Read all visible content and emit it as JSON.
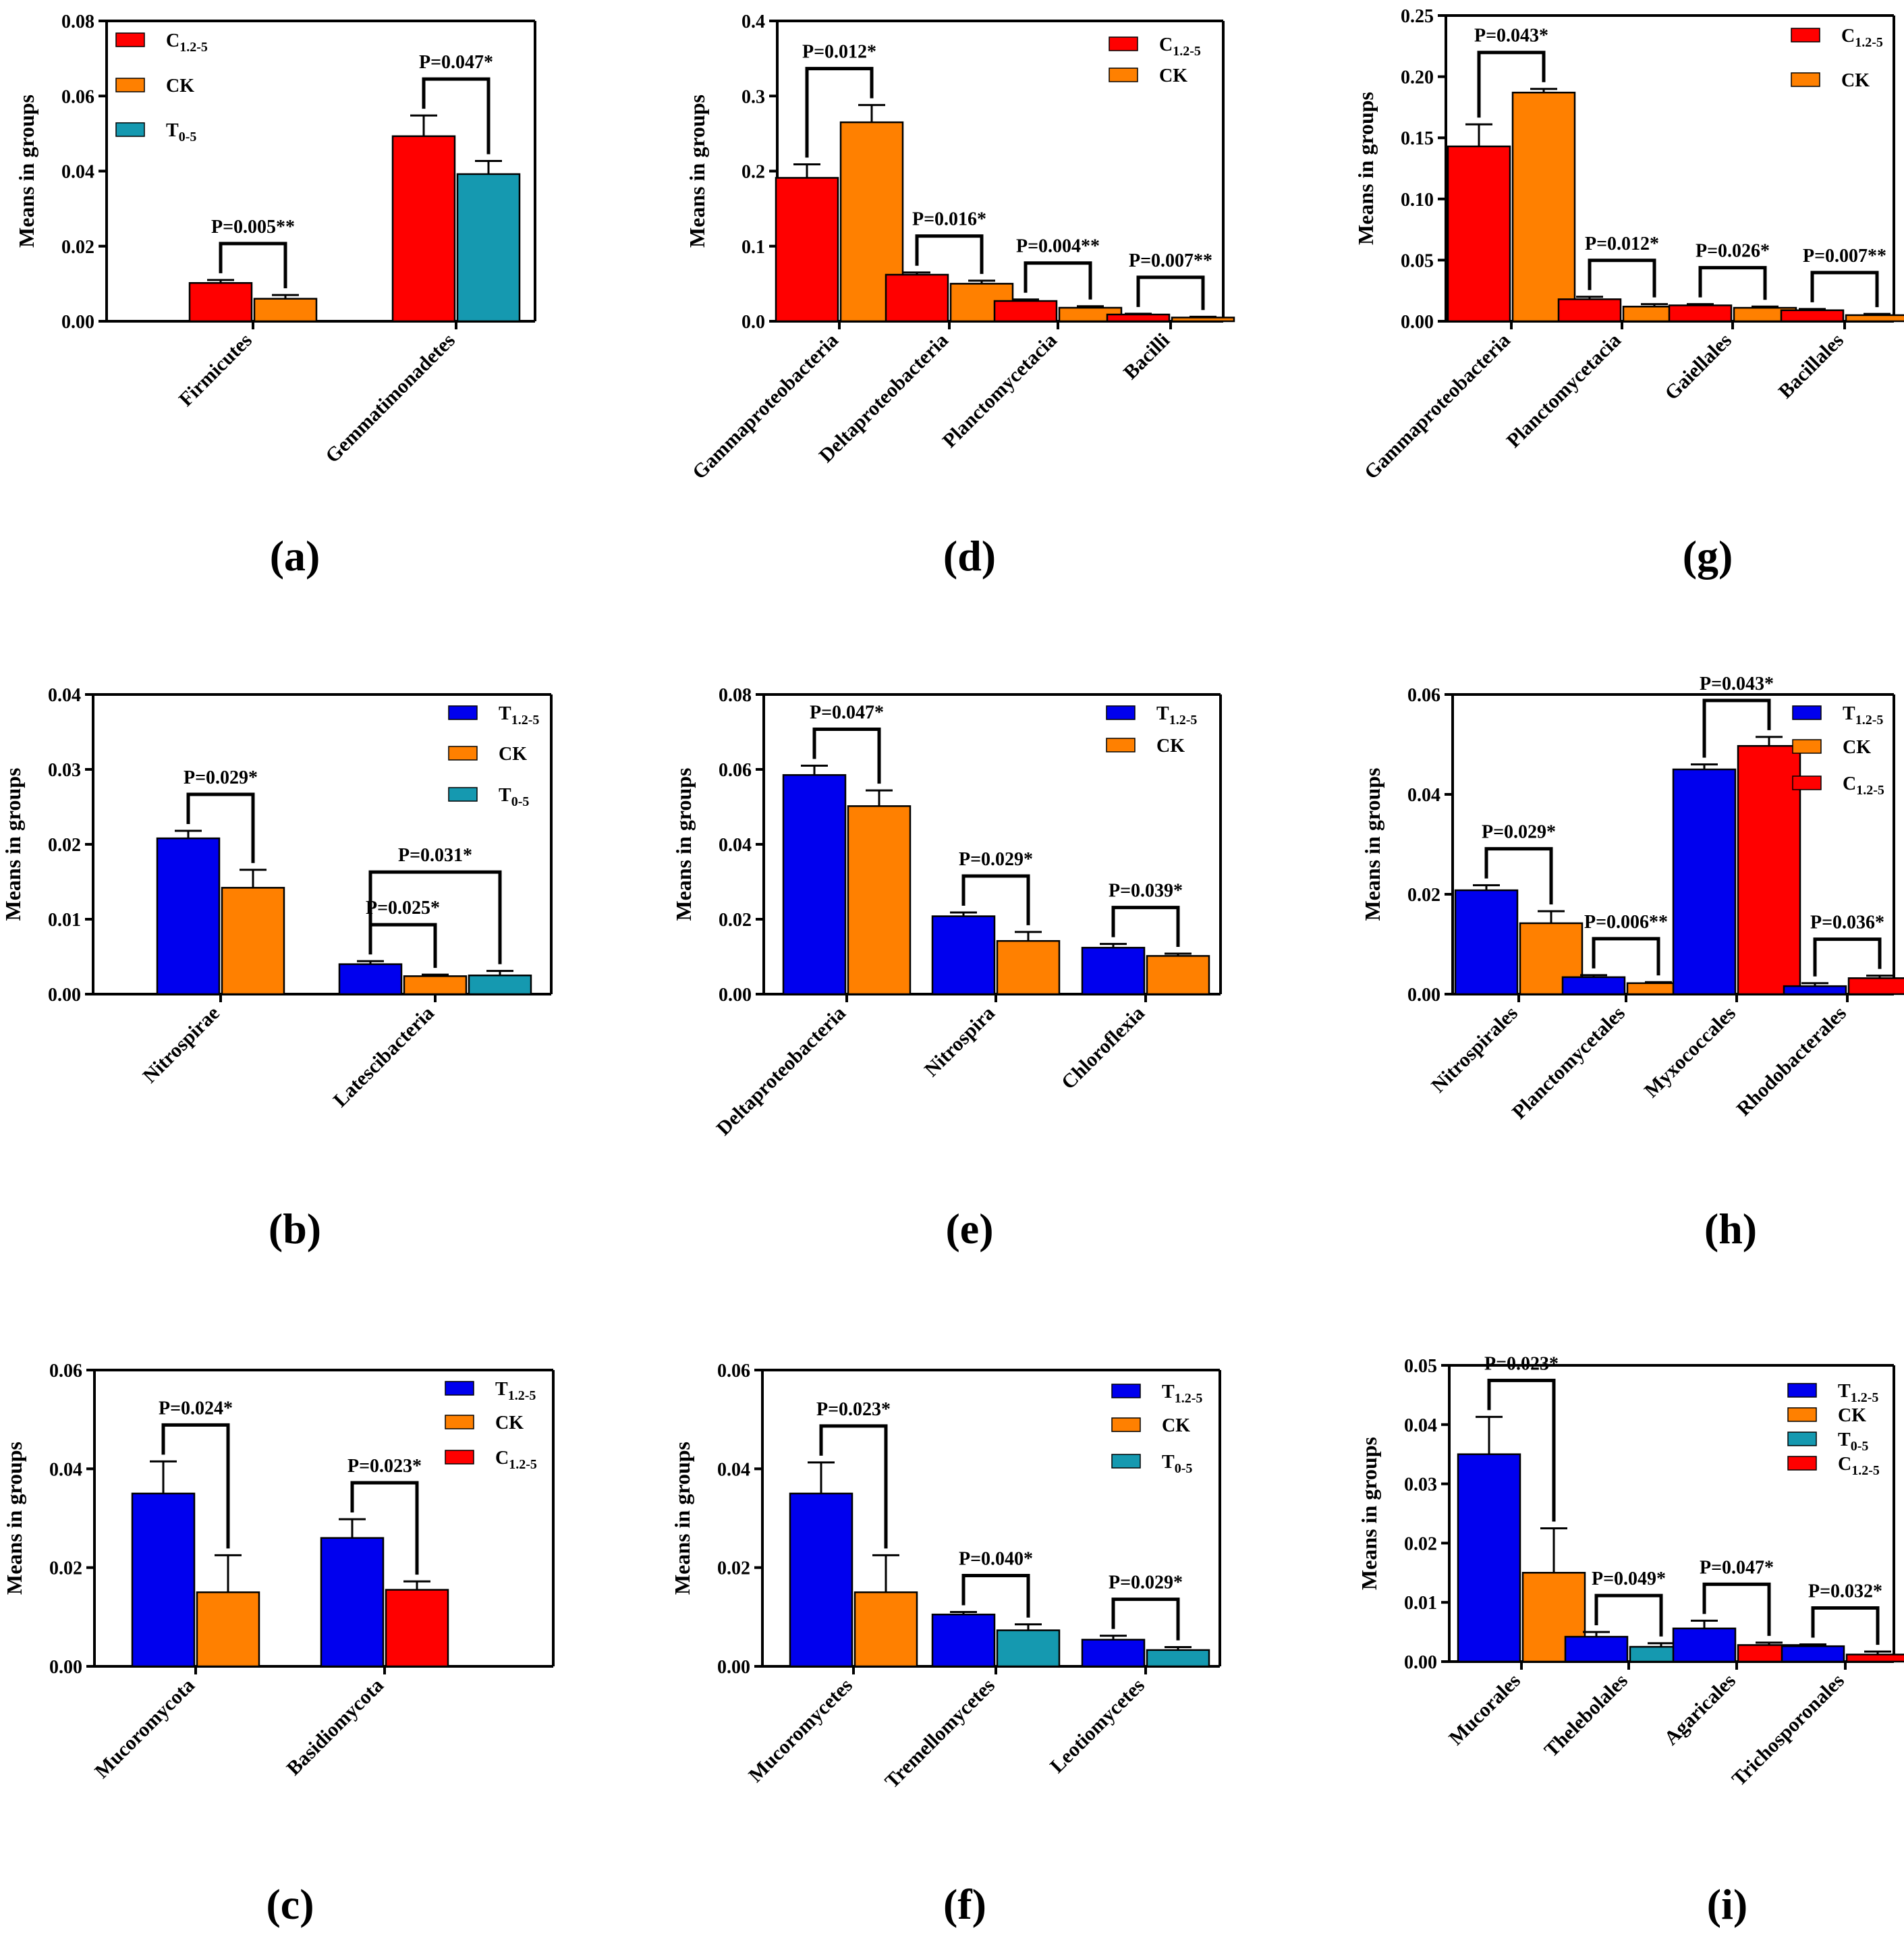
{
  "colors": {
    "C": "#ff0000",
    "CK": "#ff8000",
    "T0": "#1599b0",
    "T12": "#0000ee"
  },
  "chart_data": [
    {
      "type": "bar",
      "panel": "(a)",
      "ylabel": "Means in groups",
      "ylim": [
        0,
        0.08
      ],
      "yticks": [
        "0.00",
        "0.02",
        "0.04",
        "0.06",
        "0.08"
      ],
      "legend": [
        {
          "key": "C",
          "main": "C",
          "sub": "1.2-5"
        },
        {
          "key": "CK",
          "main": "CK",
          "sub": ""
        },
        {
          "key": "T0",
          "main": "T",
          "sub": "0-5"
        }
      ],
      "groups": [
        {
          "label": "Firmicutes",
          "pvalue": "P=0.005**",
          "bars": [
            {
              "key": "C",
              "value": 0.0102,
              "err": 0.0008
            },
            {
              "key": "CK",
              "value": 0.006,
              "err": 0.001
            }
          ]
        },
        {
          "label": "Gemmatimonadetes",
          "pvalue": "P=0.047*",
          "bars": [
            {
              "key": "C",
              "value": 0.0493,
              "err": 0.0055
            },
            {
              "key": "T0",
              "value": 0.0392,
              "err": 0.0035
            }
          ]
        }
      ]
    },
    {
      "type": "bar",
      "panel": "(d)",
      "ylabel": "Means in groups",
      "ylim": [
        0,
        0.4
      ],
      "yticks": [
        "0.0",
        "0.1",
        "0.2",
        "0.3",
        "0.4"
      ],
      "legend": [
        {
          "key": "C",
          "main": "C",
          "sub": "1.2-5"
        },
        {
          "key": "CK",
          "main": "CK",
          "sub": ""
        }
      ],
      "groups": [
        {
          "label": "Gammaproteobacteria",
          "pvalue": "P=0.012*",
          "bars": [
            {
              "key": "C",
              "value": 0.191,
              "err": 0.018
            },
            {
              "key": "CK",
              "value": 0.265,
              "err": 0.023
            }
          ]
        },
        {
          "label": "Deltaproteobacteria",
          "pvalue": "P=0.016*",
          "bars": [
            {
              "key": "C",
              "value": 0.062,
              "err": 0.003
            },
            {
              "key": "CK",
              "value": 0.05,
              "err": 0.004
            }
          ]
        },
        {
          "label": "Planctomycetacia",
          "pvalue": "P=0.004**",
          "bars": [
            {
              "key": "C",
              "value": 0.027,
              "err": 0.002
            },
            {
              "key": "CK",
              "value": 0.018,
              "err": 0.002
            }
          ]
        },
        {
          "label": "Bacilli",
          "pvalue": "P=0.007**",
          "bars": [
            {
              "key": "C",
              "value": 0.009,
              "err": 0.001
            },
            {
              "key": "CK",
              "value": 0.005,
              "err": 0.001
            }
          ]
        }
      ]
    },
    {
      "type": "bar",
      "panel": "(g)",
      "ylabel": "Means in groups",
      "ylim": [
        0,
        0.25
      ],
      "yticks": [
        "0.00",
        "0.05",
        "0.10",
        "0.15",
        "0.20",
        "0.25"
      ],
      "legend": [
        {
          "key": "C",
          "main": "C",
          "sub": "1.2-5"
        },
        {
          "key": "CK",
          "main": "CK",
          "sub": ""
        }
      ],
      "groups": [
        {
          "label": "Gammaproteobacteria",
          "pvalue": "P=0.043*",
          "bars": [
            {
              "key": "C",
              "value": 0.143,
              "err": 0.018
            },
            {
              "key": "CK",
              "value": 0.187,
              "err": 0.003
            }
          ]
        },
        {
          "label": "Planctomycetacia",
          "pvalue": "P=0.012*",
          "bars": [
            {
              "key": "C",
              "value": 0.018,
              "err": 0.002
            },
            {
              "key": "CK",
              "value": 0.012,
              "err": 0.002
            }
          ]
        },
        {
          "label": "Gaiellales",
          "pvalue": "P=0.026*",
          "bars": [
            {
              "key": "C",
              "value": 0.013,
              "err": 0.001
            },
            {
              "key": "CK",
              "value": 0.011,
              "err": 0.001
            }
          ]
        },
        {
          "label": "Bacillales",
          "pvalue": "P=0.007**",
          "bars": [
            {
              "key": "C",
              "value": 0.009,
              "err": 0.001
            },
            {
              "key": "CK",
              "value": 0.005,
              "err": 0.001
            }
          ]
        }
      ]
    },
    {
      "type": "bar",
      "panel": "(b)",
      "ylabel": "Means in groups",
      "ylim": [
        0,
        0.04
      ],
      "yticks": [
        "0.00",
        "0.01",
        "0.02",
        "0.03",
        "0.04"
      ],
      "legend": [
        {
          "key": "T12",
          "main": "T",
          "sub": "1.2-5"
        },
        {
          "key": "CK",
          "main": "CK",
          "sub": ""
        },
        {
          "key": "T0",
          "main": "T",
          "sub": "0-5"
        }
      ],
      "groups": [
        {
          "label": "Nitrospirae",
          "pvalue": "P=0.029*",
          "bars": [
            {
              "key": "T12",
              "value": 0.0208,
              "err": 0.001
            },
            {
              "key": "CK",
              "value": 0.0142,
              "err": 0.0024
            }
          ]
        },
        {
          "label": "Latescibacteria",
          "pvalue": "P=0.025*",
          "pvalue2": "P=0.031*",
          "bars": [
            {
              "key": "T12",
              "value": 0.004,
              "err": 0.0004
            },
            {
              "key": "CK",
              "value": 0.0024,
              "err": 0.0002
            },
            {
              "key": "T0",
              "value": 0.0025,
              "err": 0.0006
            }
          ]
        }
      ]
    },
    {
      "type": "bar",
      "panel": "(e)",
      "ylabel": "Means in groups",
      "ylim": [
        0,
        0.08
      ],
      "yticks": [
        "0.00",
        "0.02",
        "0.04",
        "0.06",
        "0.08"
      ],
      "legend": [
        {
          "key": "T12",
          "main": "T",
          "sub": "1.2-5"
        },
        {
          "key": "CK",
          "main": "CK",
          "sub": ""
        }
      ],
      "groups": [
        {
          "label": "Deltaproteobacteria",
          "pvalue": "P=0.047*",
          "bars": [
            {
              "key": "T12",
              "value": 0.0585,
              "err": 0.0025
            },
            {
              "key": "CK",
              "value": 0.0502,
              "err": 0.0042
            }
          ]
        },
        {
          "label": "Nitrospira",
          "pvalue": "P=0.029*",
          "bars": [
            {
              "key": "T12",
              "value": 0.0208,
              "err": 0.001
            },
            {
              "key": "CK",
              "value": 0.0142,
              "err": 0.0024
            }
          ]
        },
        {
          "label": "Chloroflexia",
          "pvalue": "P=0.039*",
          "bars": [
            {
              "key": "T12",
              "value": 0.0124,
              "err": 0.001
            },
            {
              "key": "CK",
              "value": 0.0102,
              "err": 0.0006
            }
          ]
        }
      ]
    },
    {
      "type": "bar",
      "panel": "(h)",
      "ylabel": "Means in groups",
      "ylim": [
        0,
        0.06
      ],
      "yticks": [
        "0.00",
        "0.02",
        "0.04",
        "0.06"
      ],
      "legend": [
        {
          "key": "T12",
          "main": "T",
          "sub": "1.2-5"
        },
        {
          "key": "CK",
          "main": "CK",
          "sub": ""
        },
        {
          "key": "C",
          "main": "C",
          "sub": "1.2-5"
        }
      ],
      "groups": [
        {
          "label": "Nitrospirales",
          "pvalue": "P=0.029*",
          "bars": [
            {
              "key": "T12",
              "value": 0.0208,
              "err": 0.001
            },
            {
              "key": "CK",
              "value": 0.0142,
              "err": 0.0024
            }
          ]
        },
        {
          "label": "Planctomycetales",
          "pvalue": "P=0.006**",
          "bars": [
            {
              "key": "T12",
              "value": 0.0034,
              "err": 0.0004
            },
            {
              "key": "CK",
              "value": 0.0022,
              "err": 0.0002
            }
          ]
        },
        {
          "label": "Myxococcales",
          "pvalue": "P=0.043*",
          "bars": [
            {
              "key": "T12",
              "value": 0.045,
              "err": 0.001
            },
            {
              "key": "C",
              "value": 0.0497,
              "err": 0.0018
            }
          ]
        },
        {
          "label": "Rhodobacterales",
          "pvalue": "P=0.036*",
          "bars": [
            {
              "key": "T12",
              "value": 0.0016,
              "err": 0.0006
            },
            {
              "key": "C",
              "value": 0.0032,
              "err": 0.0005
            }
          ]
        }
      ]
    },
    {
      "type": "bar",
      "panel": "(c)",
      "ylabel": "Means in groups",
      "ylim": [
        0,
        0.06
      ],
      "yticks": [
        "0.00",
        "0.02",
        "0.04",
        "0.06"
      ],
      "legend": [
        {
          "key": "T12",
          "main": "T",
          "sub": "1.2-5"
        },
        {
          "key": "CK",
          "main": "CK",
          "sub": ""
        },
        {
          "key": "C",
          "main": "C",
          "sub": "1.2-5"
        }
      ],
      "groups": [
        {
          "label": "Mucoromycota",
          "pvalue": "P=0.024*",
          "bars": [
            {
              "key": "T12",
              "value": 0.035,
              "err": 0.0065
            },
            {
              "key": "CK",
              "value": 0.015,
              "err": 0.0075
            }
          ]
        },
        {
          "label": "Basidiomycota",
          "pvalue": "P=0.023*",
          "bars": [
            {
              "key": "T12",
              "value": 0.026,
              "err": 0.0038
            },
            {
              "key": "C",
              "value": 0.0155,
              "err": 0.0017
            }
          ]
        }
      ]
    },
    {
      "type": "bar",
      "panel": "(f)",
      "ylabel": "Means in groups",
      "ylim": [
        0,
        0.06
      ],
      "yticks": [
        "0.00",
        "0.02",
        "0.04",
        "0.06"
      ],
      "legend": [
        {
          "key": "T12",
          "main": "T",
          "sub": "1.2-5"
        },
        {
          "key": "CK",
          "main": "CK",
          "sub": ""
        },
        {
          "key": "T0",
          "main": "T",
          "sub": "0-5"
        }
      ],
      "groups": [
        {
          "label": "Mucoromycetes",
          "pvalue": "P=0.023*",
          "bars": [
            {
              "key": "T12",
              "value": 0.035,
              "err": 0.0063
            },
            {
              "key": "CK",
              "value": 0.015,
              "err": 0.0075
            }
          ]
        },
        {
          "label": "Tremellomycetes",
          "pvalue": "P=0.040*",
          "bars": [
            {
              "key": "T12",
              "value": 0.0105,
              "err": 0.0005
            },
            {
              "key": "T0",
              "value": 0.0073,
              "err": 0.0012
            }
          ]
        },
        {
          "label": "Leotiomycetes",
          "pvalue": "P=0.029*",
          "bars": [
            {
              "key": "T12",
              "value": 0.0054,
              "err": 0.0008
            },
            {
              "key": "T0",
              "value": 0.0033,
              "err": 0.0006
            }
          ]
        }
      ]
    },
    {
      "type": "bar",
      "panel": "(i)",
      "ylabel": "Means in groups",
      "ylim": [
        0,
        0.05
      ],
      "yticks": [
        "0.00",
        "0.01",
        "0.02",
        "0.03",
        "0.04",
        "0.05"
      ],
      "legend": [
        {
          "key": "T12",
          "main": "T",
          "sub": "1.2-5"
        },
        {
          "key": "CK",
          "main": "CK",
          "sub": ""
        },
        {
          "key": "T0",
          "main": "T",
          "sub": "0-5"
        },
        {
          "key": "C",
          "main": "C",
          "sub": "1.2-5"
        }
      ],
      "groups": [
        {
          "label": "Mucorales",
          "pvalue": "P=0.023*",
          "bars": [
            {
              "key": "T12",
              "value": 0.035,
              "err": 0.0063
            },
            {
              "key": "CK",
              "value": 0.015,
              "err": 0.0075
            }
          ]
        },
        {
          "label": "Thelebolales",
          "pvalue": "P=0.049*",
          "bars": [
            {
              "key": "T12",
              "value": 0.0042,
              "err": 0.0008
            },
            {
              "key": "T0",
              "value": 0.0025,
              "err": 0.0006
            }
          ]
        },
        {
          "label": "Agaricales",
          "pvalue": "P=0.047*",
          "bars": [
            {
              "key": "T12",
              "value": 0.0056,
              "err": 0.0013
            },
            {
              "key": "C",
              "value": 0.0028,
              "err": 0.0004
            }
          ]
        },
        {
          "label": "Trichosporonales",
          "pvalue": "P=0.032*",
          "bars": [
            {
              "key": "T12",
              "value": 0.0026,
              "err": 0.0003
            },
            {
              "key": "C",
              "value": 0.0012,
              "err": 0.0005
            }
          ]
        }
      ]
    }
  ]
}
